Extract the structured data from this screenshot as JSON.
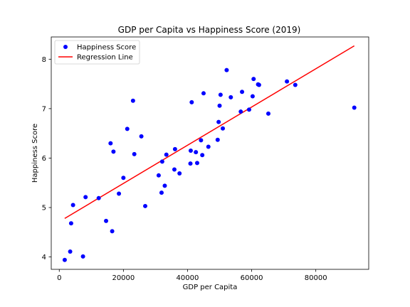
{
  "chart_data": {
    "type": "scatter",
    "title": "GDP per Capita vs Happiness Score (2019)",
    "xlabel": "GDP per Capita",
    "ylabel": "Happiness Score",
    "xlim": [
      -2500,
      96500
    ],
    "ylim": [
      3.75,
      8.45
    ],
    "xticks": [
      0,
      20000,
      40000,
      60000,
      80000
    ],
    "yticks": [
      4,
      5,
      6,
      7,
      8
    ],
    "grid": false,
    "legend_position": "top-left",
    "series": [
      {
        "name": "Happiness Score",
        "kind": "scatter",
        "color": "#0000ff",
        "points": [
          [
            1700,
            3.94
          ],
          [
            3400,
            4.11
          ],
          [
            3700,
            4.68
          ],
          [
            4300,
            5.05
          ],
          [
            7400,
            4.01
          ],
          [
            8200,
            5.21
          ],
          [
            12300,
            5.19
          ],
          [
            14600,
            4.73
          ],
          [
            16000,
            6.3
          ],
          [
            16500,
            4.52
          ],
          [
            16900,
            6.13
          ],
          [
            18600,
            5.28
          ],
          [
            20000,
            5.6
          ],
          [
            21200,
            6.59
          ],
          [
            23000,
            7.16
          ],
          [
            23400,
            6.08
          ],
          [
            25600,
            6.44
          ],
          [
            26800,
            5.03
          ],
          [
            31000,
            5.65
          ],
          [
            31900,
            5.3
          ],
          [
            32100,
            5.93
          ],
          [
            32900,
            5.44
          ],
          [
            33400,
            6.07
          ],
          [
            35900,
            5.77
          ],
          [
            36100,
            6.18
          ],
          [
            37500,
            5.69
          ],
          [
            40900,
            5.89
          ],
          [
            41000,
            6.15
          ],
          [
            41300,
            7.13
          ],
          [
            42600,
            6.12
          ],
          [
            43000,
            5.9
          ],
          [
            44200,
            6.36
          ],
          [
            44600,
            6.06
          ],
          [
            45000,
            7.31
          ],
          [
            46500,
            6.23
          ],
          [
            49400,
            6.37
          ],
          [
            49700,
            6.73
          ],
          [
            50000,
            7.06
          ],
          [
            50300,
            7.28
          ],
          [
            51000,
            6.6
          ],
          [
            52200,
            7.78
          ],
          [
            53500,
            7.23
          ],
          [
            56600,
            6.94
          ],
          [
            57000,
            7.34
          ],
          [
            59200,
            6.98
          ],
          [
            60300,
            7.25
          ],
          [
            60600,
            7.6
          ],
          [
            62000,
            7.49
          ],
          [
            62300,
            7.48
          ],
          [
            65200,
            6.9
          ],
          [
            71000,
            7.55
          ],
          [
            73600,
            7.48
          ],
          [
            92000,
            7.02
          ]
        ]
      },
      {
        "name": "Regression Line",
        "kind": "line",
        "color": "#ff0000",
        "points": [
          [
            1700,
            4.78
          ],
          [
            92000,
            8.27
          ]
        ]
      }
    ]
  }
}
